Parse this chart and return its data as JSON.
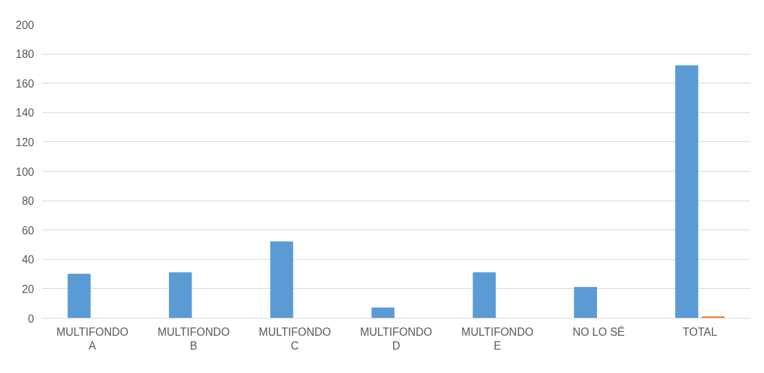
{
  "chart_data": {
    "type": "bar",
    "categories": [
      "MULTIFONDO A",
      "MULTIFONDO B",
      "MULTIFONDO C",
      "MULTIFONDO D",
      "MULTIFONDO E",
      "NO LO SÉ",
      "TOTAL"
    ],
    "series": [
      {
        "color": "#5b9bd5",
        "values": [
          30,
          31,
          52,
          7,
          31,
          21,
          172
        ]
      },
      {
        "color": "#ed7d31",
        "values": [
          null,
          null,
          null,
          null,
          null,
          null,
          1
        ]
      }
    ],
    "ylim": [
      0,
      200
    ],
    "yticks": [
      0,
      20,
      40,
      60,
      80,
      100,
      120,
      140,
      160,
      180,
      200
    ],
    "grid": "y"
  }
}
